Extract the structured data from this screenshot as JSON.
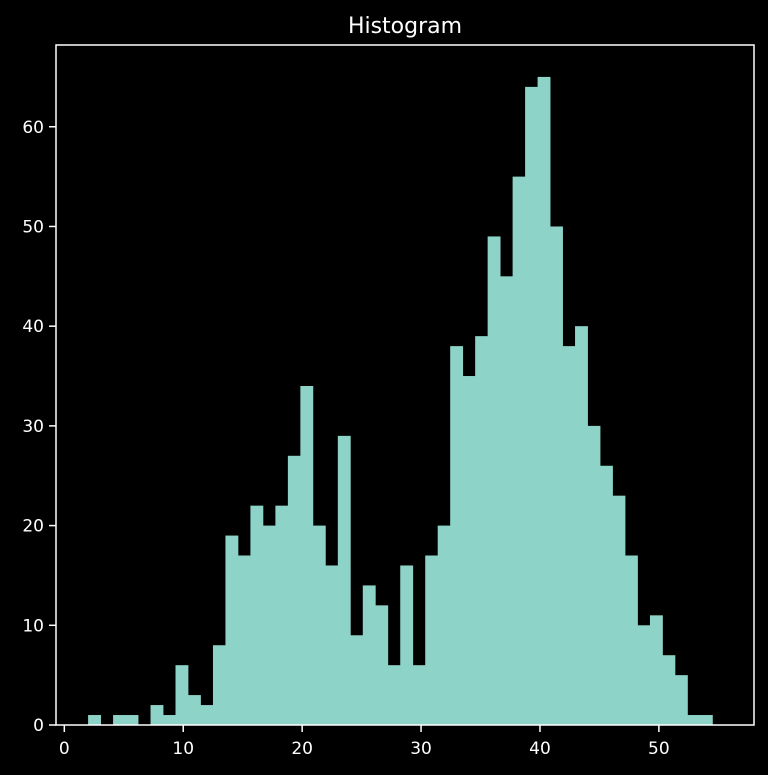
{
  "chart_data": {
    "type": "bar",
    "title": "Histogram",
    "xlabel": "",
    "ylabel": "",
    "xlim": [
      -0.7,
      58.0
    ],
    "ylim": [
      0,
      68.2
    ],
    "x_ticks": [
      0,
      10,
      20,
      30,
      40,
      50
    ],
    "y_ticks": [
      0,
      10,
      20,
      30,
      40,
      50,
      60
    ],
    "bin_width": 1.05,
    "series": [
      {
        "bin_starts": [
          2.0,
          3.05,
          4.1,
          5.15,
          6.2,
          7.25,
          8.3,
          9.35,
          10.4,
          11.45,
          12.5,
          13.55,
          14.6,
          15.65,
          16.7,
          17.75,
          18.8,
          19.85,
          20.9,
          21.95,
          23.0,
          24.05,
          25.1,
          26.15,
          27.2,
          28.25,
          29.3,
          30.35,
          31.4,
          32.45,
          33.5,
          34.55,
          35.6,
          36.65,
          37.7,
          38.75,
          39.8,
          40.85,
          41.9,
          42.95,
          44.0,
          45.05,
          46.1,
          47.15,
          48.2,
          49.25,
          50.3,
          51.35,
          52.4,
          53.45
        ],
        "counts": [
          1,
          0,
          1,
          1,
          0,
          2,
          1,
          6,
          3,
          2,
          8,
          19,
          17,
          22,
          20,
          22,
          27,
          34,
          20,
          16,
          29,
          9,
          14,
          12,
          6,
          16,
          6,
          17,
          20,
          38,
          35,
          39,
          49,
          45,
          55,
          64,
          65,
          50,
          38,
          40,
          30,
          26,
          23,
          17,
          10,
          11,
          7,
          5,
          1,
          1
        ]
      }
    ],
    "colors": {
      "background": "#000000",
      "bar": "#8dd3c7",
      "axes": "#ffffff",
      "text": "#ffffff"
    },
    "grid": false,
    "legend": "none"
  }
}
